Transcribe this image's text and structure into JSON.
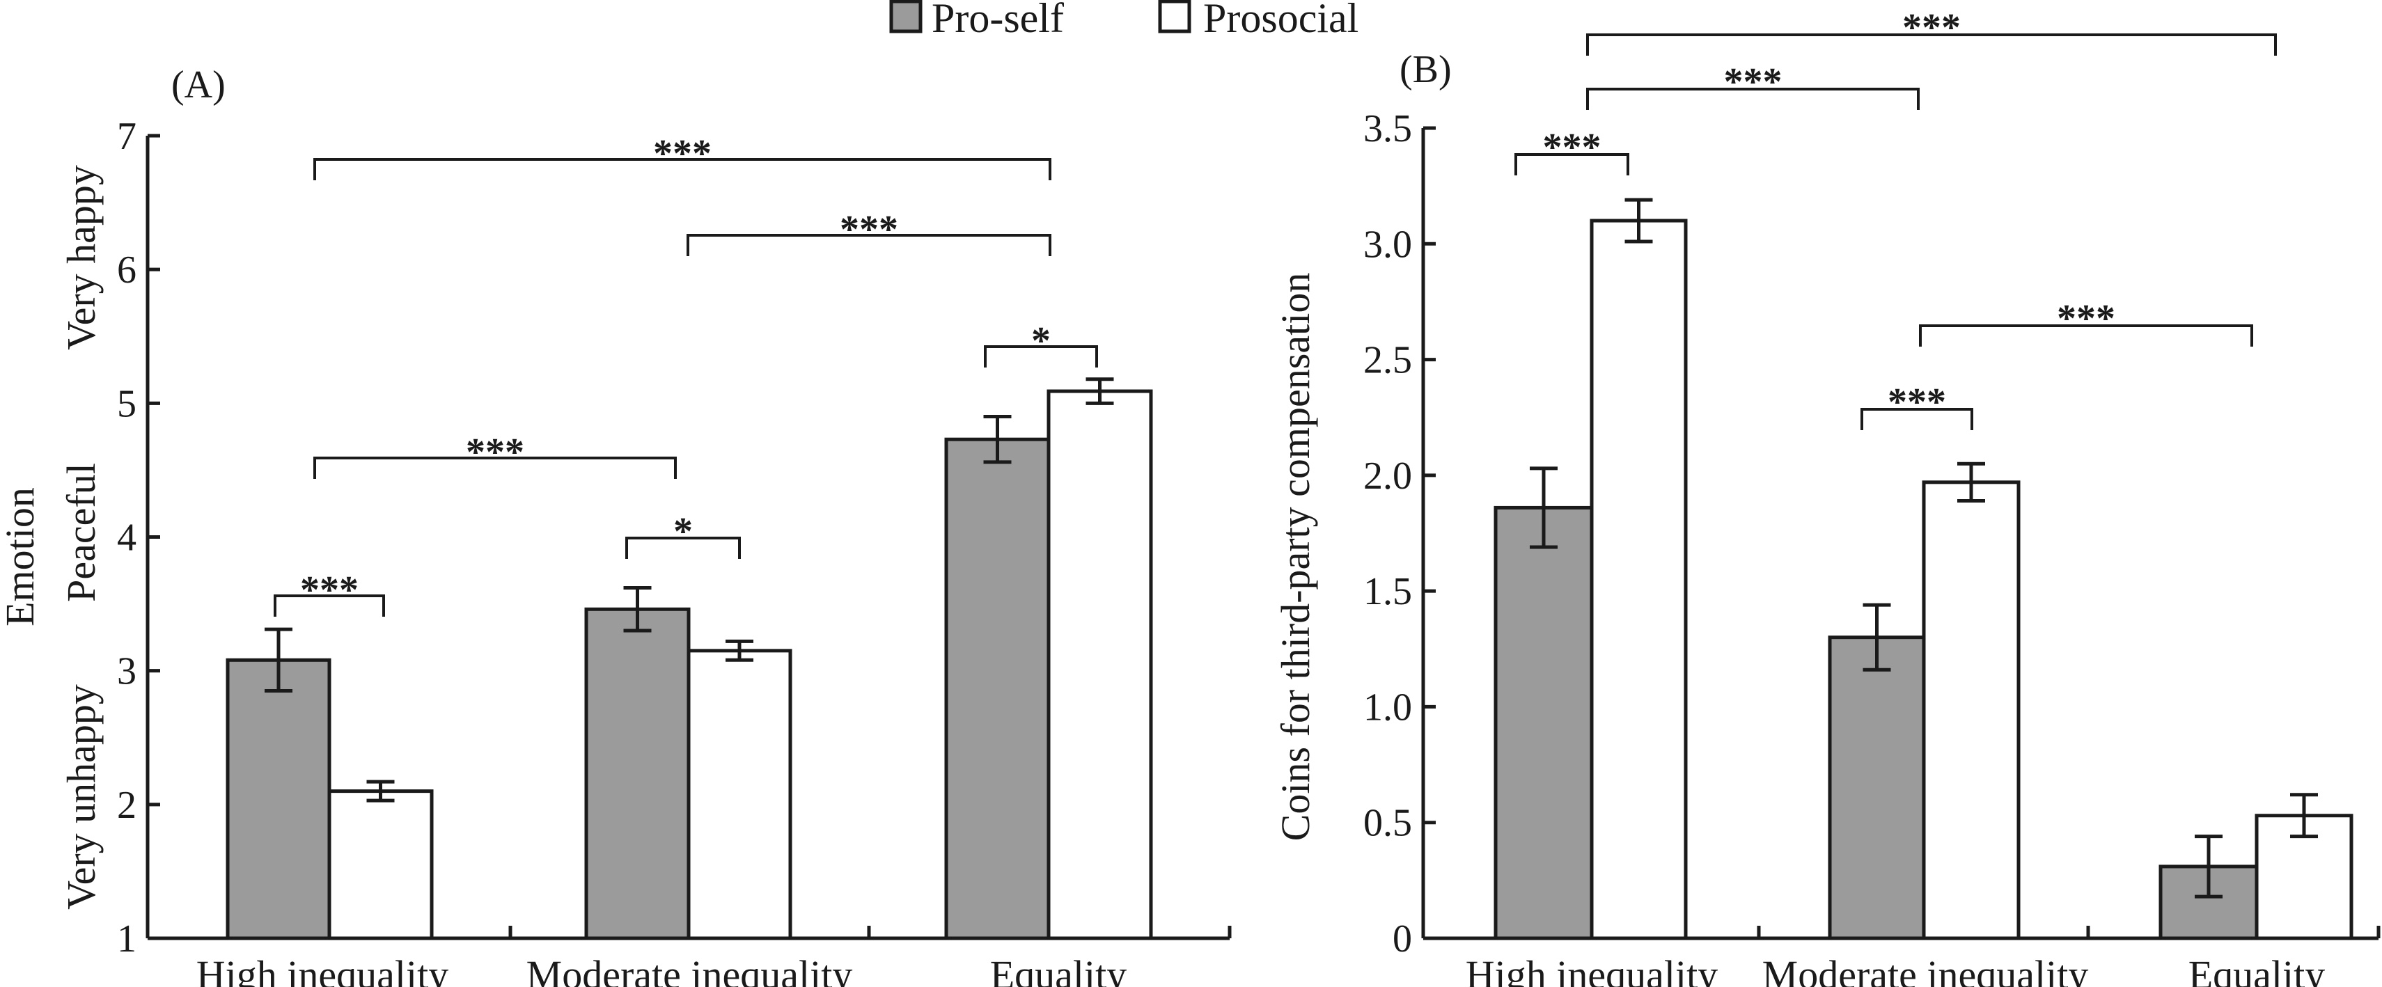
{
  "legend": {
    "items": [
      {
        "label": "Pro-self",
        "color": "#9a9b9a"
      },
      {
        "label": "Prosocial",
        "color": "#ffffff"
      }
    ],
    "placement": "top-center"
  },
  "chart_data": [
    {
      "type": "bar",
      "panel_label": "(A)",
      "title": "",
      "ylabel": "Emotion",
      "ylabel_anchors": [
        "Very unhappy",
        "Peaceful",
        "Very happy"
      ],
      "xlabel": "",
      "categories": [
        "High inequality",
        "Moderate inequality",
        "Equality"
      ],
      "ylim": [
        1,
        7
      ],
      "yticks": [
        "1",
        "2",
        "3",
        "4",
        "5",
        "6",
        "7"
      ],
      "ytick_values": [
        1,
        2,
        3,
        4,
        5,
        6,
        7
      ],
      "series": [
        {
          "name": "Pro-self",
          "values": [
            3.08,
            3.46,
            4.73
          ],
          "errors": [
            0.23,
            0.16,
            0.17
          ]
        },
        {
          "name": "Prosocial",
          "values": [
            2.1,
            3.15,
            5.09
          ],
          "errors": [
            0.07,
            0.07,
            0.09
          ]
        }
      ],
      "significance": [
        {
          "from": "High inequality/Pro-self",
          "to": "High inequality/Prosocial",
          "label": "***"
        },
        {
          "from": "Moderate inequality/Pro-self",
          "to": "Moderate inequality/Prosocial",
          "label": "*"
        },
        {
          "from": "Equality/Pro-self",
          "to": "Equality/Prosocial",
          "label": "*"
        },
        {
          "from": "High inequality",
          "to": "Moderate inequality",
          "label": "***"
        },
        {
          "from": "Moderate inequality",
          "to": "Equality",
          "label": "***"
        },
        {
          "from": "High inequality",
          "to": "Equality",
          "label": "***"
        }
      ],
      "grid": false
    },
    {
      "type": "bar",
      "panel_label": "(B)",
      "title": "",
      "ylabel": "Coins for third-party compensation",
      "xlabel": "",
      "categories": [
        "High inequality",
        "Moderate inequality",
        "Equality"
      ],
      "ylim": [
        0,
        3.5
      ],
      "yticks": [
        "0",
        "0.5",
        "1.0",
        "1.5",
        "2.0",
        "2.5",
        "3.0",
        "3.5"
      ],
      "ytick_values": [
        0,
        0.5,
        1.0,
        1.5,
        2.0,
        2.5,
        3.0,
        3.5
      ],
      "series": [
        {
          "name": "Pro-self",
          "values": [
            1.86,
            1.3,
            0.31
          ],
          "errors": [
            0.17,
            0.14,
            0.13
          ]
        },
        {
          "name": "Prosocial",
          "values": [
            3.1,
            1.97,
            0.53
          ],
          "errors": [
            0.09,
            0.08,
            0.09
          ]
        }
      ],
      "significance": [
        {
          "from": "High inequality/Pro-self",
          "to": "High inequality/Prosocial",
          "label": "***"
        },
        {
          "from": "Moderate inequality/Pro-self",
          "to": "Moderate inequality/Prosocial",
          "label": "***"
        },
        {
          "from": "Moderate inequality/Prosocial",
          "to": "Equality/Prosocial",
          "label": "***"
        },
        {
          "from": "High inequality/Prosocial",
          "to": "Moderate inequality/Prosocial",
          "label": "***"
        },
        {
          "from": "High inequality/Prosocial",
          "to": "Equality/Prosocial",
          "label": "***"
        }
      ],
      "grid": false
    }
  ]
}
